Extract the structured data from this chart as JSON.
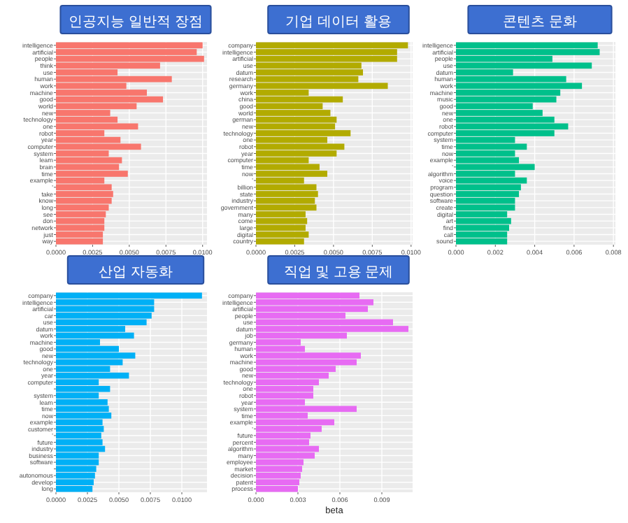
{
  "chart_data": [
    {
      "type": "bar",
      "orientation": "horizontal",
      "title": "인공지능 일반적 장점",
      "color": "#f8766d",
      "grid": true,
      "categories": [
        "intelligence",
        "artificial",
        "people",
        "think",
        "use",
        "human",
        "work",
        "machine",
        "good",
        "world",
        "new",
        "technology",
        "one",
        "robot",
        "year",
        "computer",
        "system",
        "learn",
        "brain",
        "time",
        "example",
        "'",
        "take",
        "know",
        "long",
        "see",
        "don",
        "network",
        "just",
        "way"
      ],
      "values": [
        0.01,
        0.0096,
        0.0101,
        0.0071,
        0.0042,
        0.0079,
        0.0048,
        0.0062,
        0.0073,
        0.0055,
        0.0037,
        0.0042,
        0.0056,
        0.0033,
        0.0044,
        0.0058,
        0.0036,
        0.0045,
        0.0043,
        0.0049,
        0.0033,
        0.0038,
        0.0039,
        0.0038,
        0.0036,
        0.0034,
        0.0033,
        0.0033,
        0.0032,
        0.0032
      ],
      "xlim": [
        0,
        0.0103
      ],
      "xticks": [
        {
          "value": 0,
          "label": "0.0000"
        },
        {
          "value": 0.0025,
          "label": "0.0025"
        },
        {
          "value": 0.005,
          "label": "0.0050"
        },
        {
          "value": 0.0075,
          "label": "0.0075"
        },
        {
          "value": 0.01,
          "label": "0.0100"
        }
      ]
    },
    {
      "type": "bar",
      "orientation": "horizontal",
      "title": "기업 데이터 활용",
      "color": "#b2ab00",
      "grid": true,
      "categories": [
        "company",
        "intelligence",
        "artificial",
        "use",
        "datum",
        "research",
        "germany",
        "work",
        "china",
        "good",
        "world",
        "german",
        "new",
        "technology",
        "one",
        "robot",
        "year",
        "computer",
        "time",
        "now",
        "'",
        "billion",
        "state",
        "industry",
        "government",
        "many",
        "come",
        "large",
        "digital",
        "country"
      ],
      "values": [
        0.0098,
        0.0091,
        0.0091,
        0.0068,
        0.0069,
        0.0066,
        0.0085,
        0.0034,
        0.0056,
        0.0043,
        0.0048,
        0.0052,
        0.0051,
        0.0061,
        0.0046,
        0.0057,
        0.0052,
        0.0034,
        0.0041,
        0.0046,
        0.0031,
        0.0039,
        0.004,
        0.0038,
        0.0039,
        0.0032,
        0.0033,
        0.0032,
        0.0034,
        0.0031
      ],
      "xlim": [
        0,
        0.0101
      ],
      "xticks": [
        {
          "value": 0,
          "label": "0.0000"
        },
        {
          "value": 0.0025,
          "label": "0.0025"
        },
        {
          "value": 0.005,
          "label": "0.0050"
        },
        {
          "value": 0.0075,
          "label": "0.0075"
        },
        {
          "value": 0.01,
          "label": "0.0100"
        }
      ]
    },
    {
      "type": "bar",
      "orientation": "horizontal",
      "title": "콘텐츠 문화",
      "color": "#00c08b",
      "grid": true,
      "categories": [
        "intelligence",
        "artificial",
        "people",
        "use",
        "datum",
        "human",
        "work",
        "machine",
        "music",
        "good",
        "new",
        "one",
        "robot",
        "computer",
        "system",
        "time",
        "now",
        "example",
        "'",
        "algorithm",
        "voice",
        "program",
        "question",
        "software",
        "create",
        "digital",
        "art",
        "find",
        "call",
        "sound"
      ],
      "values": [
        0.0072,
        0.0073,
        0.0049,
        0.0069,
        0.0029,
        0.0056,
        0.0064,
        0.0053,
        0.0051,
        0.0039,
        0.0044,
        0.005,
        0.0057,
        0.005,
        0.003,
        0.0036,
        0.003,
        0.0032,
        0.004,
        0.003,
        0.0036,
        0.0033,
        0.0032,
        0.003,
        0.003,
        0.0026,
        0.0028,
        0.0027,
        0.0026,
        0.0026
      ],
      "xlim": [
        0,
        0.0081
      ],
      "xticks": [
        {
          "value": 0,
          "label": "0.000"
        },
        {
          "value": 0.002,
          "label": "0.002"
        },
        {
          "value": 0.004,
          "label": "0.004"
        },
        {
          "value": 0.006,
          "label": "0.006"
        },
        {
          "value": 0.008,
          "label": "0.008"
        }
      ]
    },
    {
      "type": "bar",
      "orientation": "horizontal",
      "title": "산업 자동화",
      "color": "#00b0f6",
      "grid": true,
      "categories": [
        "company",
        "intelligence",
        "artificial",
        "car",
        "use",
        "datum",
        "work",
        "machine",
        "good",
        "new",
        "technology",
        "one",
        "year",
        "computer",
        null,
        "system",
        "learn",
        "time",
        "now",
        "example",
        "customer",
        "'",
        "future",
        "industry",
        "business",
        "software",
        null,
        "autonomous",
        "develop",
        "long"
      ],
      "values": [
        0.0116,
        0.0078,
        0.0078,
        0.0076,
        0.0072,
        0.0055,
        0.0062,
        0.0035,
        0.005,
        0.0063,
        0.0053,
        0.0043,
        0.0058,
        0.0034,
        0.0043,
        0.0034,
        0.0041,
        0.0042,
        0.0044,
        0.0037,
        0.0038,
        0.0036,
        0.0037,
        0.0039,
        0.0034,
        0.0034,
        0.0032,
        0.0031,
        0.003,
        0.0029
      ],
      "xlim": [
        0,
        0.012
      ],
      "xticks": [
        {
          "value": 0,
          "label": "0.0000"
        },
        {
          "value": 0.0025,
          "label": "0.0025"
        },
        {
          "value": 0.005,
          "label": "0.0050"
        },
        {
          "value": 0.0075,
          "label": "0.0075"
        },
        {
          "value": 0.01,
          "label": "0.0100"
        }
      ]
    },
    {
      "type": "bar",
      "orientation": "horizontal",
      "title": "직업 및 고용 문제",
      "color": "#e76bf3",
      "grid": true,
      "xlabel": "beta",
      "categories": [
        "company",
        "intelligence",
        "artificial",
        "people",
        "use",
        "datum",
        "job",
        "germany",
        "human",
        "work",
        "machine",
        "good",
        "new",
        "technology",
        "one",
        "robot",
        "year",
        "system",
        "time",
        "example",
        "'",
        "future",
        "percent",
        "algorithm",
        "many",
        "employee",
        "market",
        "decision",
        "patent",
        "process"
      ],
      "values": [
        0.0074,
        0.0084,
        0.008,
        0.0064,
        0.0098,
        0.0109,
        0.0065,
        0.0032,
        0.0035,
        0.0075,
        0.0072,
        0.0057,
        0.0052,
        0.0045,
        0.0041,
        0.0041,
        0.0035,
        0.0072,
        0.0037,
        0.0056,
        0.0047,
        0.0039,
        0.0038,
        0.0045,
        0.0042,
        0.0034,
        0.0033,
        0.0032,
        0.0031,
        0.003
      ],
      "xlim": [
        0,
        0.0112
      ],
      "xticks": [
        {
          "value": 0,
          "label": "0.000"
        },
        {
          "value": 0.003,
          "label": "0.003"
        },
        {
          "value": 0.006,
          "label": "0.006"
        },
        {
          "value": 0.009,
          "label": "0.009"
        }
      ]
    }
  ]
}
